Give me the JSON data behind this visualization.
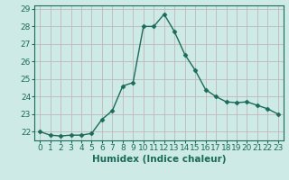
{
  "xlabel": "Humidex (Indice chaleur)",
  "x": [
    0,
    1,
    2,
    3,
    4,
    5,
    6,
    7,
    8,
    9,
    10,
    11,
    12,
    13,
    14,
    15,
    16,
    17,
    18,
    19,
    20,
    21,
    22,
    23
  ],
  "y": [
    22.0,
    21.8,
    21.75,
    21.8,
    21.8,
    21.9,
    22.7,
    23.2,
    24.6,
    24.8,
    28.0,
    28.0,
    28.7,
    27.7,
    26.4,
    25.5,
    24.4,
    24.0,
    23.7,
    23.65,
    23.7,
    23.5,
    23.3,
    23.0
  ],
  "line_color": "#1a6b5a",
  "marker": "D",
  "marker_size": 2.5,
  "bg_color": "#ceeae6",
  "grid_color": "#c0b8b8",
  "ylim": [
    21.5,
    29.2
  ],
  "xlim": [
    -0.5,
    23.5
  ],
  "yticks": [
    22,
    23,
    24,
    25,
    26,
    27,
    28,
    29
  ],
  "xticks": [
    0,
    1,
    2,
    3,
    4,
    5,
    6,
    7,
    8,
    9,
    10,
    11,
    12,
    13,
    14,
    15,
    16,
    17,
    18,
    19,
    20,
    21,
    22,
    23
  ],
  "xlabel_fontsize": 7.5,
  "tick_fontsize": 6.5,
  "linewidth": 1.0
}
